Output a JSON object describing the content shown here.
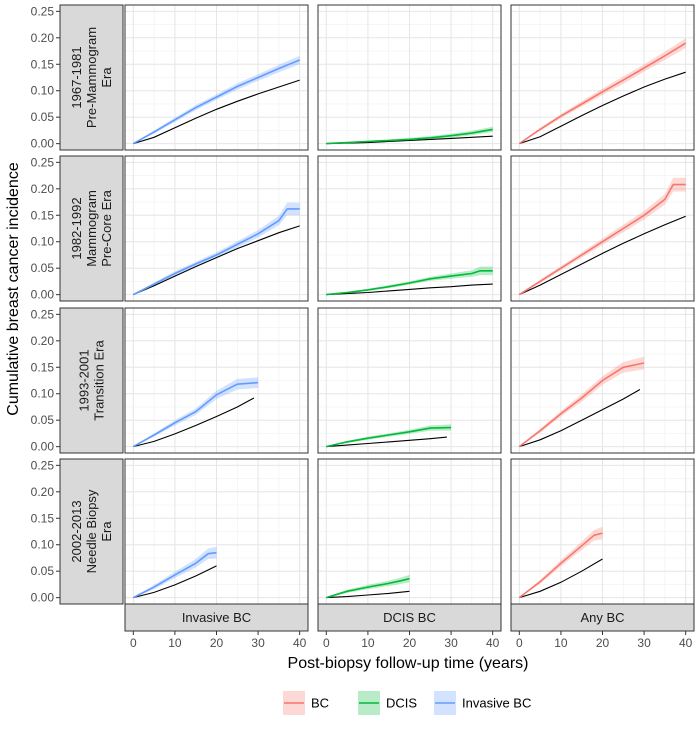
{
  "chart_data": {
    "type": "line",
    "facet_layout": "grid",
    "xlabel": "Post-biopsy follow-up time (years)",
    "ylabel": "Cumulative breast cancer incidence",
    "x_ticks": [
      0,
      10,
      20,
      30,
      40
    ],
    "y_ticks": [
      0.0,
      0.05,
      0.1,
      0.15,
      0.2,
      0.25
    ],
    "y_tick_labels": [
      "0.00",
      "0.05",
      "0.10",
      "0.15",
      "0.20",
      "0.25"
    ],
    "xlim": [
      -2,
      42
    ],
    "ylim": [
      -0.012,
      0.262
    ],
    "grid": true,
    "columns": [
      "Invasive BC",
      "DCIS BC",
      "Any BC"
    ],
    "rows": [
      {
        "lines": [
          "1967-1981",
          "Pre-Mammogram",
          "Era"
        ]
      },
      {
        "lines": [
          "1982-1992",
          "Mammogram",
          "Pre-Core Era"
        ]
      },
      {
        "lines": [
          "1993-2001",
          "Transition Era"
        ]
      },
      {
        "lines": [
          "2002-2013",
          "Needle Biopsy",
          "Era"
        ]
      }
    ],
    "legend": {
      "position": "bottom",
      "entries": [
        {
          "label": "BC",
          "color": "#F8766D"
        },
        {
          "label": "DCIS",
          "color": "#00BA38"
        },
        {
          "label": "Invasive BC",
          "color": "#619CFF"
        }
      ]
    },
    "colors": {
      "Invasive BC": "#619CFF",
      "DCIS BC": "#00BA38",
      "Any BC": "#F8766D",
      "expected": "#000000"
    },
    "panels": [
      {
        "row": 0,
        "col": 0,
        "series": "Invasive BC",
        "observed": [
          [
            0,
            0
          ],
          [
            5,
            0.022
          ],
          [
            10,
            0.045
          ],
          [
            15,
            0.068
          ],
          [
            20,
            0.088
          ],
          [
            25,
            0.108
          ],
          [
            30,
            0.125
          ],
          [
            35,
            0.142
          ],
          [
            40,
            0.158
          ]
        ],
        "ci_halfwidth": [
          0.001,
          0.003,
          0.004,
          0.005,
          0.005,
          0.006,
          0.006,
          0.007,
          0.008
        ],
        "expected": [
          [
            0,
            0
          ],
          [
            5,
            0.012
          ],
          [
            10,
            0.03
          ],
          [
            15,
            0.048
          ],
          [
            20,
            0.065
          ],
          [
            25,
            0.08
          ],
          [
            30,
            0.094
          ],
          [
            35,
            0.107
          ],
          [
            40,
            0.12
          ]
        ]
      },
      {
        "row": 0,
        "col": 1,
        "series": "DCIS BC",
        "observed": [
          [
            0,
            0
          ],
          [
            5,
            0.002
          ],
          [
            10,
            0.004
          ],
          [
            15,
            0.006
          ],
          [
            20,
            0.008
          ],
          [
            25,
            0.011
          ],
          [
            30,
            0.015
          ],
          [
            35,
            0.02
          ],
          [
            40,
            0.027
          ]
        ],
        "ci_halfwidth": [
          0.0005,
          0.001,
          0.002,
          0.002,
          0.003,
          0.003,
          0.004,
          0.004,
          0.005
        ],
        "expected": [
          [
            0,
            0
          ],
          [
            5,
            0.001
          ],
          [
            10,
            0.002
          ],
          [
            15,
            0.004
          ],
          [
            20,
            0.006
          ],
          [
            25,
            0.008
          ],
          [
            30,
            0.01
          ],
          [
            35,
            0.012
          ],
          [
            40,
            0.014
          ]
        ]
      },
      {
        "row": 0,
        "col": 2,
        "series": "Any BC",
        "observed": [
          [
            0,
            0
          ],
          [
            5,
            0.027
          ],
          [
            10,
            0.052
          ],
          [
            15,
            0.075
          ],
          [
            20,
            0.098
          ],
          [
            25,
            0.12
          ],
          [
            30,
            0.143
          ],
          [
            35,
            0.166
          ],
          [
            40,
            0.19
          ]
        ],
        "ci_halfwidth": [
          0.001,
          0.003,
          0.004,
          0.005,
          0.006,
          0.007,
          0.007,
          0.008,
          0.009
        ],
        "expected": [
          [
            0,
            0
          ],
          [
            5,
            0.013
          ],
          [
            10,
            0.033
          ],
          [
            15,
            0.053
          ],
          [
            20,
            0.072
          ],
          [
            25,
            0.09
          ],
          [
            30,
            0.107
          ],
          [
            35,
            0.122
          ],
          [
            40,
            0.135
          ]
        ]
      },
      {
        "row": 1,
        "col": 0,
        "series": "Invasive BC",
        "observed": [
          [
            0,
            0
          ],
          [
            5,
            0.02
          ],
          [
            10,
            0.04
          ],
          [
            15,
            0.058
          ],
          [
            20,
            0.075
          ],
          [
            25,
            0.095
          ],
          [
            30,
            0.115
          ],
          [
            35,
            0.14
          ],
          [
            37,
            0.162
          ],
          [
            40,
            0.162
          ]
        ],
        "ci_halfwidth": [
          0.001,
          0.003,
          0.004,
          0.004,
          0.005,
          0.006,
          0.007,
          0.009,
          0.012,
          0.012
        ],
        "expected": [
          [
            0,
            0
          ],
          [
            5,
            0.017
          ],
          [
            10,
            0.035
          ],
          [
            15,
            0.053
          ],
          [
            20,
            0.07
          ],
          [
            25,
            0.087
          ],
          [
            30,
            0.102
          ],
          [
            35,
            0.117
          ],
          [
            40,
            0.13
          ]
        ]
      },
      {
        "row": 1,
        "col": 1,
        "series": "DCIS BC",
        "observed": [
          [
            0,
            0
          ],
          [
            5,
            0.004
          ],
          [
            10,
            0.009
          ],
          [
            15,
            0.015
          ],
          [
            20,
            0.022
          ],
          [
            25,
            0.03
          ],
          [
            30,
            0.035
          ],
          [
            35,
            0.04
          ],
          [
            37,
            0.045
          ],
          [
            40,
            0.045
          ]
        ],
        "ci_halfwidth": [
          0.0005,
          0.001,
          0.002,
          0.003,
          0.003,
          0.004,
          0.005,
          0.006,
          0.008,
          0.008
        ],
        "expected": [
          [
            0,
            0
          ],
          [
            5,
            0.002
          ],
          [
            10,
            0.004
          ],
          [
            15,
            0.007
          ],
          [
            20,
            0.01
          ],
          [
            25,
            0.013
          ],
          [
            30,
            0.015
          ],
          [
            35,
            0.018
          ],
          [
            40,
            0.02
          ]
        ]
      },
      {
        "row": 1,
        "col": 2,
        "series": "Any BC",
        "observed": [
          [
            0,
            0
          ],
          [
            5,
            0.025
          ],
          [
            10,
            0.05
          ],
          [
            15,
            0.075
          ],
          [
            20,
            0.1
          ],
          [
            25,
            0.125
          ],
          [
            30,
            0.15
          ],
          [
            35,
            0.18
          ],
          [
            37,
            0.208
          ],
          [
            40,
            0.208
          ]
        ],
        "ci_halfwidth": [
          0.001,
          0.003,
          0.004,
          0.005,
          0.006,
          0.007,
          0.008,
          0.01,
          0.013,
          0.013
        ],
        "expected": [
          [
            0,
            0
          ],
          [
            5,
            0.018
          ],
          [
            10,
            0.038
          ],
          [
            15,
            0.058
          ],
          [
            20,
            0.078
          ],
          [
            25,
            0.097
          ],
          [
            30,
            0.115
          ],
          [
            35,
            0.132
          ],
          [
            40,
            0.148
          ]
        ]
      },
      {
        "row": 2,
        "col": 0,
        "series": "Invasive BC",
        "observed": [
          [
            0,
            0
          ],
          [
            5,
            0.022
          ],
          [
            10,
            0.045
          ],
          [
            15,
            0.066
          ],
          [
            20,
            0.098
          ],
          [
            25,
            0.118
          ],
          [
            30,
            0.121
          ]
        ],
        "ci_halfwidth": [
          0.001,
          0.003,
          0.005,
          0.006,
          0.008,
          0.01,
          0.01
        ],
        "expected": [
          [
            0,
            0
          ],
          [
            5,
            0.01
          ],
          [
            10,
            0.024
          ],
          [
            15,
            0.04
          ],
          [
            20,
            0.057
          ],
          [
            25,
            0.075
          ],
          [
            29,
            0.092
          ]
        ]
      },
      {
        "row": 2,
        "col": 1,
        "series": "DCIS BC",
        "observed": [
          [
            0,
            0
          ],
          [
            5,
            0.009
          ],
          [
            10,
            0.016
          ],
          [
            15,
            0.022
          ],
          [
            20,
            0.028
          ],
          [
            25,
            0.035
          ],
          [
            30,
            0.036
          ]
        ],
        "ci_halfwidth": [
          0.001,
          0.002,
          0.003,
          0.003,
          0.004,
          0.005,
          0.006
        ],
        "expected": [
          [
            0,
            0
          ],
          [
            5,
            0.003
          ],
          [
            10,
            0.006
          ],
          [
            15,
            0.009
          ],
          [
            20,
            0.012
          ],
          [
            25,
            0.015
          ],
          [
            29,
            0.018
          ]
        ]
      },
      {
        "row": 2,
        "col": 2,
        "series": "Any BC",
        "observed": [
          [
            0,
            0
          ],
          [
            5,
            0.03
          ],
          [
            10,
            0.062
          ],
          [
            15,
            0.092
          ],
          [
            20,
            0.125
          ],
          [
            25,
            0.15
          ],
          [
            30,
            0.158
          ]
        ],
        "ci_halfwidth": [
          0.001,
          0.004,
          0.005,
          0.007,
          0.008,
          0.01,
          0.012
        ],
        "expected": [
          [
            0,
            0
          ],
          [
            5,
            0.013
          ],
          [
            10,
            0.03
          ],
          [
            15,
            0.05
          ],
          [
            20,
            0.07
          ],
          [
            25,
            0.09
          ],
          [
            29,
            0.108
          ]
        ]
      },
      {
        "row": 3,
        "col": 0,
        "series": "Invasive BC",
        "observed": [
          [
            0,
            0
          ],
          [
            5,
            0.02
          ],
          [
            10,
            0.043
          ],
          [
            15,
            0.065
          ],
          [
            18,
            0.083
          ],
          [
            20,
            0.085
          ]
        ],
        "ci_halfwidth": [
          0.001,
          0.004,
          0.006,
          0.008,
          0.01,
          0.011
        ],
        "expected": [
          [
            0,
            0
          ],
          [
            5,
            0.01
          ],
          [
            10,
            0.024
          ],
          [
            15,
            0.041
          ],
          [
            20,
            0.06
          ]
        ]
      },
      {
        "row": 3,
        "col": 1,
        "series": "DCIS BC",
        "observed": [
          [
            0,
            0
          ],
          [
            5,
            0.012
          ],
          [
            10,
            0.02
          ],
          [
            15,
            0.027
          ],
          [
            18,
            0.032
          ],
          [
            20,
            0.036
          ]
        ],
        "ci_halfwidth": [
          0.001,
          0.003,
          0.004,
          0.005,
          0.006,
          0.007
        ],
        "expected": [
          [
            0,
            0
          ],
          [
            5,
            0.002
          ],
          [
            10,
            0.005
          ],
          [
            15,
            0.008
          ],
          [
            20,
            0.012
          ]
        ]
      },
      {
        "row": 3,
        "col": 2,
        "series": "Any BC",
        "observed": [
          [
            0,
            0
          ],
          [
            5,
            0.03
          ],
          [
            10,
            0.065
          ],
          [
            15,
            0.098
          ],
          [
            18,
            0.118
          ],
          [
            20,
            0.122
          ]
        ],
        "ci_halfwidth": [
          0.001,
          0.004,
          0.006,
          0.008,
          0.01,
          0.012
        ],
        "expected": [
          [
            0,
            0
          ],
          [
            5,
            0.012
          ],
          [
            10,
            0.029
          ],
          [
            15,
            0.05
          ],
          [
            20,
            0.073
          ]
        ]
      }
    ]
  }
}
